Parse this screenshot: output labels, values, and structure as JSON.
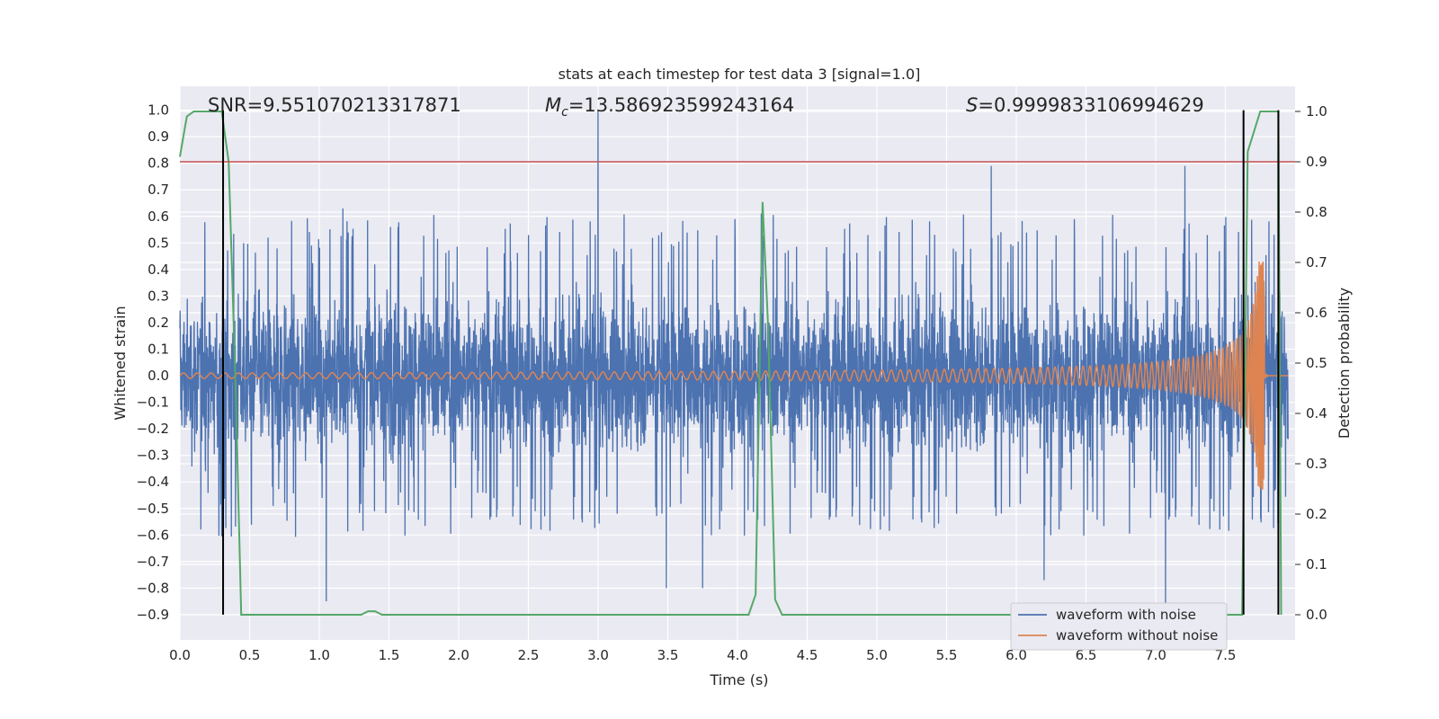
{
  "chart_data": {
    "type": "line",
    "title": "stats at each timestep for test data 3 [signal=1.0]",
    "xlabel": "Time (s)",
    "ylabel_left": "Whitened strain",
    "ylabel_right": "Detection probability",
    "xlim": [
      0.0,
      8.0
    ],
    "ylim_left": [
      -0.995,
      1.09
    ],
    "ylim_right": [
      -0.05,
      1.05
    ],
    "x_ticks": [
      "0.0",
      "0.5",
      "1.0",
      "1.5",
      "2.0",
      "2.5",
      "3.0",
      "3.5",
      "4.0",
      "4.5",
      "5.0",
      "5.5",
      "6.0",
      "6.5",
      "7.0",
      "7.5"
    ],
    "y_ticks_left": [
      "1.0",
      "0.9",
      "0.8",
      "0.7",
      "0.6",
      "0.5",
      "0.4",
      "0.3",
      "0.2",
      "0.1",
      "0.0",
      "−0.1",
      "−0.2",
      "−0.3",
      "−0.4",
      "−0.5",
      "−0.6",
      "−0.7",
      "−0.8",
      "−0.9"
    ],
    "y_ticks_right": [
      "1.0",
      "0.9",
      "0.8",
      "0.7",
      "0.6",
      "0.5",
      "0.4",
      "0.3",
      "0.2",
      "0.1",
      "0.0"
    ],
    "grid": true,
    "legend_position": "lower-right",
    "annotations": {
      "snr": "SNR=9.551070213317871",
      "mc_prefix": "M",
      "mc_sub": "c",
      "mc_value": "=13.586923599243164",
      "s_prefix": "S",
      "s_value": "=0.9999833106994629"
    },
    "threshold_line": {
      "axis": "right",
      "value": 0.9,
      "color": "#c44e52"
    },
    "vertical_markers": [
      0.31,
      7.63,
      7.88
    ],
    "vertical_marker_range_left": [
      -0.9,
      1.0
    ],
    "series": [
      {
        "name": "waveform with noise",
        "color": "#4c72b0",
        "axis": "left",
        "description_points": {
          "noise_typical_amplitude": 0.38,
          "max_peaks": [
            [
              3.0,
              1.0
            ],
            [
              5.82,
              0.79
            ],
            [
              7.21,
              0.79
            ],
            [
              1.17,
              0.63
            ],
            [
              4.17,
              0.61
            ]
          ],
          "min_peaks": [
            [
              1.05,
              -0.85
            ],
            [
              7.07,
              -0.87
            ],
            [
              3.49,
              -0.8
            ],
            [
              3.75,
              -0.8
            ],
            [
              6.2,
              -0.77
            ]
          ]
        }
      },
      {
        "name": "waveform without noise",
        "color": "#dd8452",
        "axis": "left",
        "chirp": {
          "start_amplitude": 0.01,
          "peak_time": 7.7,
          "peak_amplitude": 0.43,
          "end_time": 7.78
        }
      },
      {
        "name": "",
        "color": "#55a868",
        "axis": "right",
        "x": [
          0.0,
          0.05,
          0.1,
          0.15,
          0.2,
          0.25,
          0.3,
          0.35,
          0.4,
          0.44,
          0.5,
          1.0,
          1.3,
          1.35,
          1.4,
          1.45,
          1.5,
          2.0,
          3.0,
          4.0,
          4.08,
          4.13,
          4.18,
          4.22,
          4.27,
          4.32,
          5.0,
          6.0,
          7.0,
          7.5,
          7.62,
          7.66,
          7.75,
          7.8,
          7.85,
          7.88,
          7.9
        ],
        "y": [
          0.91,
          0.99,
          1.0,
          1.0,
          1.0,
          1.0,
          1.0,
          0.9,
          0.45,
          0.0,
          0.0,
          0.0,
          0.0,
          0.007,
          0.007,
          0.0,
          0.0,
          0.0,
          0.0,
          0.0,
          0.0,
          0.04,
          0.82,
          0.57,
          0.03,
          0.0,
          0.0,
          0.0,
          0.0,
          0.0,
          0.0,
          0.92,
          1.0,
          1.0,
          1.0,
          1.0,
          0.0
        ]
      }
    ]
  }
}
